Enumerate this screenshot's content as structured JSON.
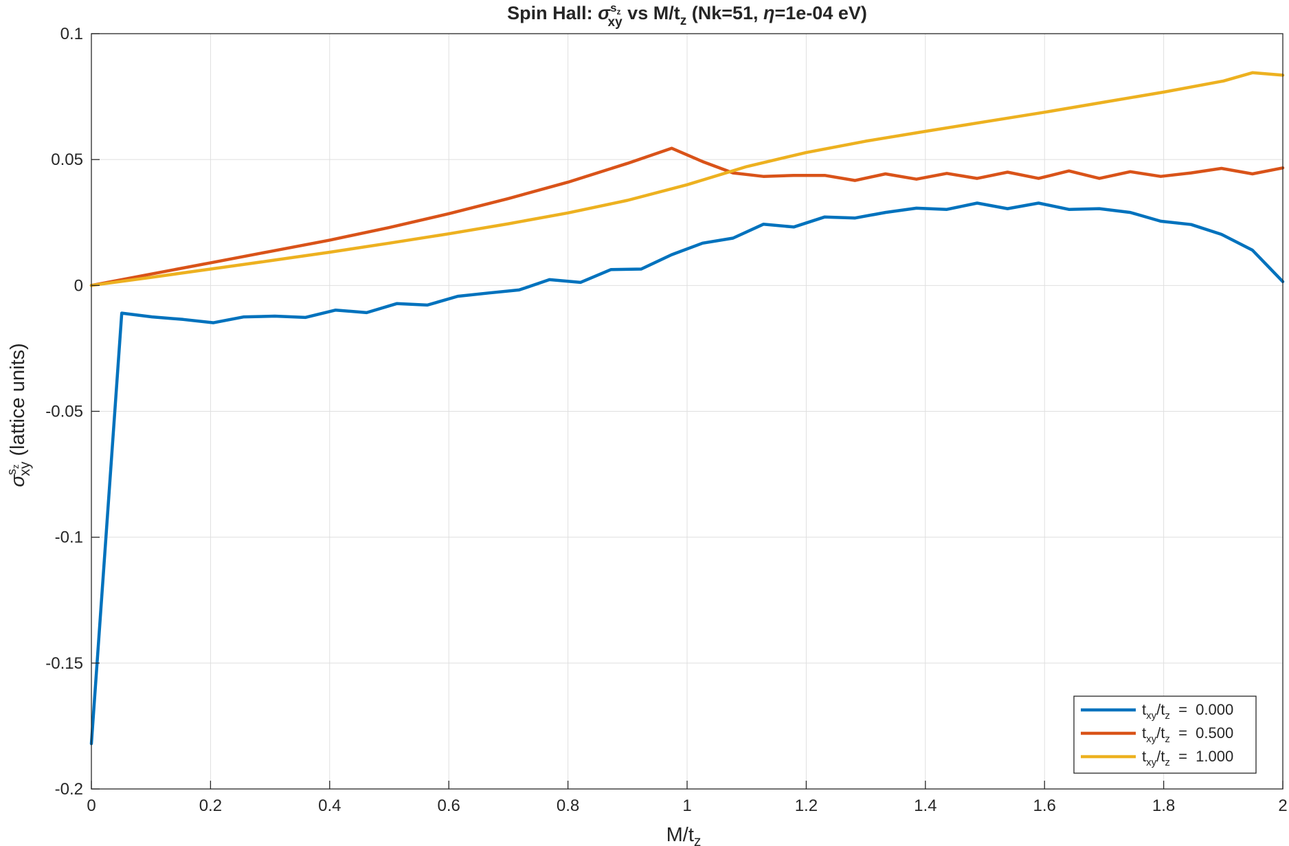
{
  "chart_data": {
    "type": "line",
    "title_parts": {
      "lead": "Spin  Hall:  ",
      "sigma": "σ",
      "sigma_sup": "s",
      "sigma_sup_sub": "z",
      "sigma_sub": "xy",
      "mid": "  vs  M/t",
      "mid_sub": "z",
      "tail_open": "   (Nk=51,  ",
      "eta": "η",
      "tail_close": "=1e-04  eV)"
    },
    "xlabel_parts": {
      "main": "M/t",
      "sub": "z"
    },
    "ylabel_parts": {
      "sigma": "σ",
      "sup": "s",
      "sup_sub": "z",
      "sub": "xy",
      "rest": "  (lattice  units)"
    },
    "xlim": [
      0,
      2
    ],
    "ylim": [
      -0.2,
      0.1
    ],
    "xticks": [
      0,
      0.2,
      0.4,
      0.6,
      0.8,
      1,
      1.2,
      1.4,
      1.6,
      1.8,
      2
    ],
    "xtick_labels": [
      "0",
      "0.2",
      "0.4",
      "0.6",
      "0.8",
      "1",
      "1.2",
      "1.4",
      "1.6",
      "1.8",
      "2"
    ],
    "yticks": [
      -0.2,
      -0.15,
      -0.1,
      -0.05,
      0,
      0.05,
      0.1
    ],
    "ytick_labels": [
      "-0.2",
      "-0.15",
      "-0.1",
      "-0.05",
      "0",
      "0.05",
      "0.1"
    ],
    "grid": true,
    "legend_position": "bottom-right",
    "legend_label_parts": {
      "t": "t",
      "xy": "xy",
      "slash": "/t",
      "z": "z",
      "eq": "  =  "
    },
    "series": [
      {
        "param_value": "0.000",
        "color": "#0072BD",
        "x": [
          0,
          0.051,
          0.102,
          0.154,
          0.205,
          0.256,
          0.308,
          0.359,
          0.41,
          0.462,
          0.513,
          0.564,
          0.615,
          0.667,
          0.718,
          0.769,
          0.821,
          0.872,
          0.923,
          0.974,
          1.026,
          1.077,
          1.128,
          1.179,
          1.231,
          1.282,
          1.333,
          1.385,
          1.436,
          1.487,
          1.538,
          1.59,
          1.641,
          1.692,
          1.744,
          1.795,
          1.846,
          1.897,
          1.949,
          2.0
        ],
        "y": [
          -0.182,
          -0.011,
          -0.0125,
          -0.0135,
          -0.0148,
          -0.0125,
          -0.0122,
          -0.0127,
          -0.0098,
          -0.0108,
          -0.0072,
          -0.0078,
          -0.0043,
          -0.003,
          -0.0018,
          0.0023,
          0.0012,
          0.0063,
          0.0065,
          0.0122,
          0.0168,
          0.0188,
          0.0243,
          0.0232,
          0.0272,
          0.0268,
          0.029,
          0.0307,
          0.0302,
          0.0327,
          0.0305,
          0.0327,
          0.0302,
          0.0305,
          0.029,
          0.0255,
          0.0242,
          0.0203,
          0.014,
          0.0015
        ]
      },
      {
        "param_value": "0.500",
        "color": "#D95319",
        "x": [
          0,
          0.1,
          0.2,
          0.3,
          0.4,
          0.5,
          0.6,
          0.7,
          0.8,
          0.9,
          0.974,
          1.026,
          1.077,
          1.128,
          1.179,
          1.231,
          1.282,
          1.333,
          1.385,
          1.436,
          1.487,
          1.538,
          1.59,
          1.641,
          1.692,
          1.744,
          1.795,
          1.846,
          1.897,
          1.949,
          2.0
        ],
        "y": [
          0,
          0.0045,
          0.009,
          0.0135,
          0.018,
          0.023,
          0.0285,
          0.0345,
          0.041,
          0.0485,
          0.0545,
          0.0492,
          0.0447,
          0.0433,
          0.0437,
          0.0437,
          0.0417,
          0.0443,
          0.0422,
          0.0445,
          0.0425,
          0.045,
          0.0425,
          0.0455,
          0.0425,
          0.0452,
          0.0433,
          0.0447,
          0.0465,
          0.0443,
          0.0467
        ]
      },
      {
        "param_value": "1.000",
        "color": "#EDB120",
        "x": [
          0,
          0.1,
          0.2,
          0.3,
          0.4,
          0.5,
          0.6,
          0.7,
          0.8,
          0.9,
          1.0,
          1.1,
          1.2,
          1.3,
          1.4,
          1.5,
          1.6,
          1.7,
          1.8,
          1.9,
          1.949,
          2.0
        ],
        "y": [
          0,
          0.0032,
          0.0065,
          0.0098,
          0.0132,
          0.0168,
          0.0205,
          0.0245,
          0.0288,
          0.0338,
          0.04,
          0.0472,
          0.0528,
          0.0573,
          0.0612,
          0.065,
          0.0688,
          0.0728,
          0.0768,
          0.0812,
          0.0845,
          0.0835
        ]
      }
    ]
  }
}
